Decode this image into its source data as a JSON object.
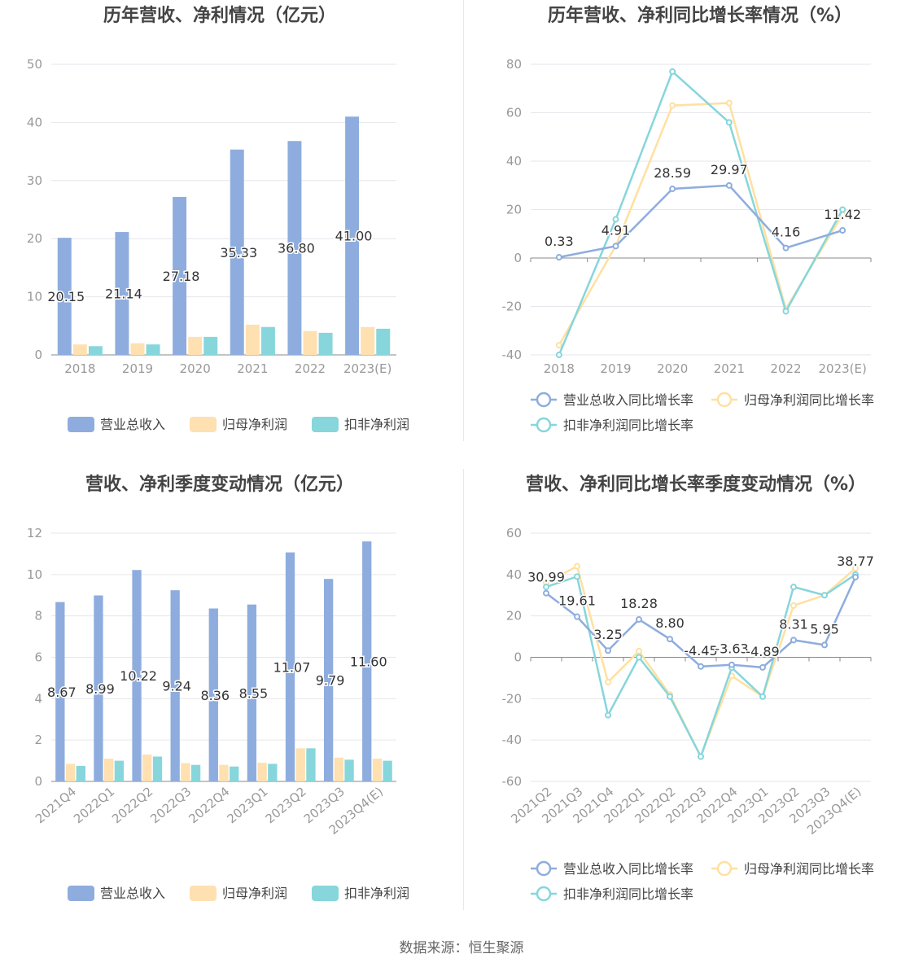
{
  "footer": {
    "source": "数据来源：恒生聚源"
  },
  "chart_data": [
    {
      "id": "annual-values",
      "type": "bar",
      "title": "历年营收、净利情况（亿元）",
      "categories": [
        "2018",
        "2019",
        "2020",
        "2021",
        "2022",
        "2023(E)"
      ],
      "ylim": [
        0,
        50
      ],
      "yticks": [
        0,
        10,
        20,
        30,
        40,
        50
      ],
      "label_series": 0,
      "series": [
        {
          "name": "营业总收入",
          "color": "#8eadde",
          "values": [
            20.15,
            21.14,
            27.18,
            35.33,
            36.8,
            41.0
          ],
          "labels": [
            "20.15",
            "21.14",
            "27.18",
            "35.33",
            "36.80",
            "41.00"
          ]
        },
        {
          "name": "归母净利润",
          "color": "#ffe0b0",
          "values": [
            1.8,
            2.0,
            3.1,
            5.2,
            4.1,
            4.8
          ]
        },
        {
          "name": "扣非净利润",
          "color": "#86d6dc",
          "values": [
            1.5,
            1.8,
            3.1,
            4.8,
            3.8,
            4.5
          ]
        }
      ],
      "grid": true,
      "legend": "bottom"
    },
    {
      "id": "annual-growth",
      "type": "line",
      "title": "历年营收、净利同比增长率情况（%）",
      "categories": [
        "2018",
        "2019",
        "2020",
        "2021",
        "2022",
        "2023(E)"
      ],
      "ylim": [
        -40,
        80
      ],
      "yticks": [
        -40,
        -20,
        0,
        20,
        40,
        60,
        80
      ],
      "label_series": 0,
      "series": [
        {
          "name": "营业总收入同比增长率",
          "color": "#8eadde",
          "values": [
            0.33,
            4.91,
            28.59,
            29.97,
            4.16,
            11.42
          ],
          "labels": [
            "0.33",
            "4.91",
            "28.59",
            "29.97",
            "4.16",
            "11.42"
          ]
        },
        {
          "name": "归母净利润同比增长率",
          "color": "#ffe0a0",
          "values": [
            -36,
            5,
            63,
            64,
            -21,
            18
          ]
        },
        {
          "name": "扣非净利润同比增长率",
          "color": "#86d6dc",
          "values": [
            -40,
            16,
            77,
            56,
            -22,
            20
          ]
        }
      ],
      "grid": true,
      "legend": "bottom"
    },
    {
      "id": "quarterly-values",
      "type": "bar",
      "title": "营收、净利季度变动情况（亿元）",
      "categories": [
        "2021Q4",
        "2022Q1",
        "2022Q2",
        "2022Q3",
        "2022Q4",
        "2023Q1",
        "2023Q2",
        "2023Q3",
        "2023Q4(E)"
      ],
      "ylim": [
        0,
        12
      ],
      "yticks": [
        0,
        2,
        4,
        6,
        8,
        10,
        12
      ],
      "label_series": 0,
      "series": [
        {
          "name": "营业总收入",
          "color": "#8eadde",
          "values": [
            8.67,
            8.99,
            10.22,
            9.24,
            8.36,
            8.55,
            11.07,
            9.79,
            11.6
          ],
          "labels": [
            "8.67",
            "8.99",
            "10.22",
            "9.24",
            "8.36",
            "8.55",
            "11.07",
            "9.79",
            "11.60"
          ]
        },
        {
          "name": "归母净利润",
          "color": "#ffe0b0",
          "values": [
            0.85,
            1.1,
            1.3,
            0.88,
            0.8,
            0.9,
            1.6,
            1.15,
            1.1
          ]
        },
        {
          "name": "扣非净利润",
          "color": "#86d6dc",
          "values": [
            0.75,
            1.0,
            1.2,
            0.8,
            0.72,
            0.85,
            1.6,
            1.05,
            1.0
          ]
        }
      ],
      "grid": true,
      "legend": "bottom"
    },
    {
      "id": "quarterly-growth",
      "type": "line",
      "title": "营收、净利同比增长率季度变动情况（%）",
      "categories": [
        "2021Q2",
        "2021Q3",
        "2021Q4",
        "2022Q1",
        "2022Q2",
        "2022Q3",
        "2022Q4",
        "2023Q1",
        "2023Q2",
        "2023Q3",
        "2023Q4(E)"
      ],
      "ylim": [
        -60,
        60
      ],
      "yticks": [
        -60,
        -40,
        -20,
        0,
        20,
        40,
        60
      ],
      "label_series": 0,
      "series": [
        {
          "name": "营业总收入同比增长率",
          "color": "#8eadde",
          "values": [
            30.99,
            19.61,
            3.25,
            18.28,
            8.8,
            -4.45,
            -3.63,
            -4.89,
            8.31,
            5.95,
            38.77
          ],
          "labels": [
            "30.99",
            "19.61",
            "3.25",
            "18.28",
            "8.80",
            "-4.45",
            "-3.63",
            "-4.89",
            "8.31",
            "5.95",
            "38.77"
          ]
        },
        {
          "name": "归母净利润同比增长率",
          "color": "#ffe0a0",
          "values": [
            36,
            44,
            -12,
            3,
            -18,
            -48,
            -9,
            -19,
            25,
            30,
            43
          ]
        },
        {
          "name": "扣非净利润同比增长率",
          "color": "#86d6dc",
          "values": [
            34,
            39,
            -28,
            0,
            -19,
            -48,
            -5,
            -19,
            34,
            30,
            40
          ]
        }
      ],
      "grid": true,
      "legend": "bottom"
    }
  ]
}
